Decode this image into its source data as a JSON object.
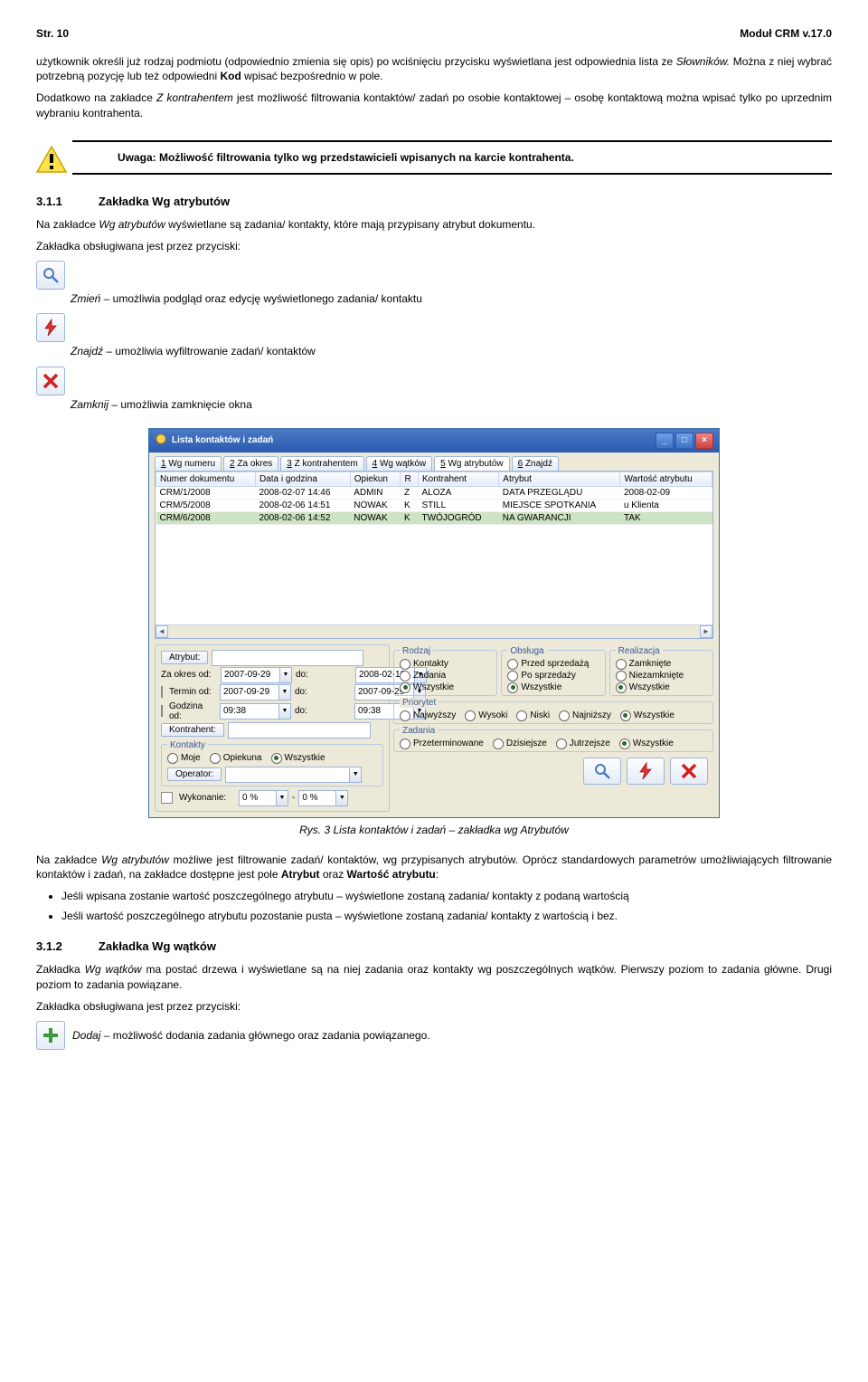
{
  "page": {
    "left": "Str. 10",
    "right": "Moduł CRM v.17.0"
  },
  "para1a": "użytkownik określi już rodzaj podmiotu (odpowiednio zmienia się opis) po wciśnięciu przycisku wyświetlana jest odpowiednia lista ze ",
  "para1b": "Słowników.",
  "para1c": " Można z niej wybrać potrzebną pozycję lub też odpowiedni ",
  "para1d": "Kod",
  "para1e": " wpisać bezpośrednio w pole.",
  "para2a": "Dodatkowo na zakładce ",
  "para2b": "Z kontrahentem",
  "para2c": " jest możliwość filtrowania kontaktów/ zadań po osobie kontaktowej – osobę kontaktową można wpisać tylko po uprzednim wybraniu kontrahenta.",
  "warning": "Uwaga: Możliwość filtrowania tylko wg przedstawicieli wpisanych na karcie kontrahenta.",
  "h311_no": "3.1.1",
  "h311": "Zakładka Wg atrybutów",
  "p311a": "Na zakładce ",
  "p311b": "Wg atrybutów ",
  "p311c": " wyświetlane są zadania/ kontakty, które mają przypisany atrybut dokumentu.",
  "p311d": "Zakładka obsługiwana jest przez przyciski:",
  "zmien_i": "Zmień",
  "zmien_t": " – umożliwia podgląd oraz edycję wyświetlonego zadania/ kontaktu",
  "znajdz_i": "Znajdź",
  "znajdz_t": " – umożliwia wyfiltrowanie zadań/ kontaktów",
  "zamknij_i": "Zamknij",
  "zamknij_t": " – umożliwia zamknięcie okna",
  "win": {
    "title": "Lista kontaktów i zadań",
    "tabs": [
      "1 Wg numeru",
      "2 Za okres",
      "3 Z kontrahentem",
      "4 Wg wątków",
      "5 Wg atrybutów",
      "6 Znajdź"
    ],
    "active_tab": 4,
    "cols": [
      "Numer dokumentu",
      "Data i godzina",
      "Opiekun",
      "R",
      "Kontrahent",
      "Atrybut",
      "Wartość atrybutu"
    ],
    "rows": [
      [
        "CRM/1/2008",
        "2008-02-07 14:46",
        "ADMIN",
        "Z",
        "ALOZA",
        "DATA PRZEGLĄDU",
        "2008-02-09"
      ],
      [
        "CRM/5/2008",
        "2008-02-06 14:51",
        "NOWAK",
        "K",
        "STILL",
        "MIEJSCE SPOTKANIA",
        "u Klienta"
      ],
      [
        "CRM/6/2008",
        "2008-02-06 14:52",
        "NOWAK",
        "K",
        "TWÓJOGRÓD",
        "NA GWARANCJI",
        "TAK"
      ]
    ],
    "sel_row": 2,
    "filters": {
      "atrybut_btn": "Atrybut:",
      "zaokres": "Za okres od:",
      "termin": "Termin od:",
      "godzina": "Godzina od:",
      "kontrahent_btn": "Kontrahent:",
      "do": "do:",
      "d1": "2007-09-29",
      "d2": "2008-02-10",
      "d3": "2007-09-29",
      "d4": "2007-09-29",
      "t1": "09:38",
      "t2": "09:38",
      "kontakty": "Kontakty",
      "moje": "Moje",
      "opiekuna": "Opiekuna",
      "wszystkie": "Wszystkie",
      "operator": "Operator:",
      "wykonanie": "Wykonanie:",
      "zero": "0 %",
      "rodzaj": "Rodzaj",
      "r_kontakty": "Kontakty",
      "r_zadania": "Zadania",
      "r_wszystkie": "Wszystkie",
      "obsluga": "Obsługa",
      "o_przed": "Przed sprzedażą",
      "o_po": "Po sprzedaży",
      "o_wsz": "Wszystkie",
      "realizacja": "Realizacja",
      "re_zam": "Zamknięte",
      "re_nie": "Niezamknięte",
      "re_wsz": "Wszystkie",
      "priorytet": "Priorytet",
      "p_najw": "Najwyższy",
      "p_wys": "Wysoki",
      "p_nis": "Niski",
      "p_najn": "Najniższy",
      "p_wsz": "Wszystkie",
      "zadania": "Zadania",
      "z_prz": "Przeterminowane",
      "z_dz": "Dzisiejsze",
      "z_ju": "Jutrzejsze",
      "z_wsz": "Wszystkie"
    }
  },
  "caption": "Rys. 3 Lista kontaktów i zadań – zakładka wg Atrybutów",
  "p_after1a": "Na zakładce ",
  "p_after1b": "Wg atrybutów",
  "p_after1c": " możliwe jest filtrowanie zadań/ kontaktów, wg przypisanych atrybutów. Oprócz standardowych parametrów umożliwiających filtrowanie kontaktów i zadań, na zakładce dostępne jest pole ",
  "p_after1d": "Atrybut",
  "p_after1e": " oraz ",
  "p_after1f": "Wartość atrybutu",
  "p_after1g": ":",
  "bullet1": "Jeśli wpisana zostanie wartość poszczególnego atrybutu – wyświetlone zostaną zadania/ kontakty z podaną wartością",
  "bullet2": "Jeśli wartość poszczególnego atrybutu pozostanie pusta – wyświetlone zostaną zadania/ kontakty z wartością i bez.",
  "h312_no": "3.1.2",
  "h312": "Zakładka Wg wątków",
  "p312a": "Zakładka ",
  "p312b": "Wg wątków",
  "p312c": " ma postać drzewa i wyświetlane są na niej zadania oraz kontakty wg poszczególnych wątków. Pierwszy poziom to zadania główne. Drugi poziom to zadania powiązane.",
  "p312d": "Zakładka obsługiwana jest przez przyciski:",
  "dodaj_i": "Dodaj",
  "dodaj_t": " – możliwość dodania zadania głównego oraz zadania powiązanego."
}
